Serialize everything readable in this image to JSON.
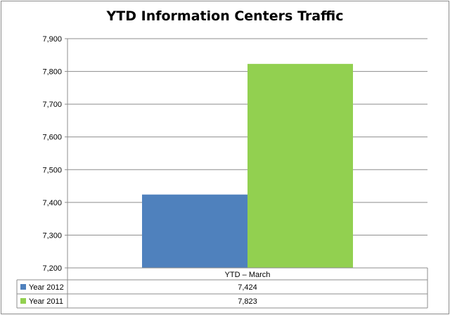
{
  "chart_data": {
    "type": "bar",
    "title": "YTD Information Centers Traffic",
    "categories": [
      "YTD – March"
    ],
    "series": [
      {
        "name": "Year 2012",
        "values": [
          7424
        ],
        "color": "#4f81bd",
        "value_labels": [
          "7,424"
        ]
      },
      {
        "name": "Year 2011",
        "values": [
          7823
        ],
        "color": "#92d050",
        "value_labels": [
          "7,823"
        ]
      }
    ],
    "xlabel": "",
    "ylabel": "",
    "ylim": [
      7200,
      7900
    ],
    "yticks": [
      7200,
      7300,
      7400,
      7500,
      7600,
      7700,
      7800,
      7900
    ],
    "ytick_labels": [
      "7,200",
      "7,300",
      "7,400",
      "7,500",
      "7,600",
      "7,700",
      "7,800",
      "7,900"
    ],
    "grid": true,
    "legend": "data-table"
  }
}
